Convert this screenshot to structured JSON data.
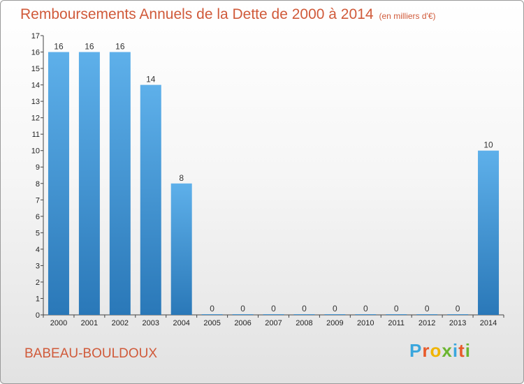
{
  "header": {
    "title": "Remboursements Annuels de la Dette de 2000 à 2014",
    "unit": "(en milliers d'€)"
  },
  "footer": {
    "city": "BABEAU-BOULDOUX",
    "brand": "Proxiti"
  },
  "colors": {
    "title": "#d05a3a",
    "bar_top": "#5eb0ea",
    "bar_bottom": "#2a78b8",
    "axis": "#444444"
  },
  "chart_data": {
    "type": "bar",
    "title": "Remboursements Annuels de la Dette de 2000 à 2014",
    "xlabel": "",
    "ylabel": "",
    "categories": [
      "2000",
      "2001",
      "2002",
      "2003",
      "2004",
      "2005",
      "2006",
      "2007",
      "2008",
      "2009",
      "2010",
      "2011",
      "2012",
      "2013",
      "2014"
    ],
    "values": [
      16,
      16,
      16,
      14,
      8,
      0,
      0,
      0,
      0,
      0,
      0,
      0,
      0,
      0,
      10
    ],
    "ylim": [
      0,
      17
    ],
    "yticks": [
      0,
      1,
      2,
      3,
      4,
      5,
      6,
      7,
      8,
      9,
      10,
      11,
      12,
      13,
      14,
      15,
      16,
      17
    ],
    "grid": false,
    "legend": "none"
  }
}
